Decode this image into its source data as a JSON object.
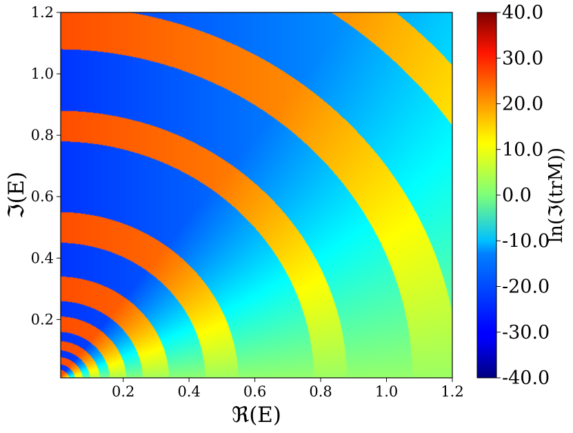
{
  "chart_data": {
    "type": "heatmap",
    "title": "",
    "xlabel": "ℜ(E)",
    "ylabel": "ℑ(E)",
    "xlim": [
      0.01,
      1.2
    ],
    "ylim": [
      0.01,
      1.2
    ],
    "x_ticks": [
      0.2,
      0.4,
      0.6,
      0.8,
      1.0,
      1.2
    ],
    "x_tick_labels": [
      "0.2",
      "0.4",
      "0.6",
      "0.8",
      "1.0",
      "1.2"
    ],
    "y_ticks": [
      0.2,
      0.4,
      0.6,
      0.8,
      1.0,
      1.2
    ],
    "y_tick_labels": [
      "0.2",
      "0.4",
      "0.6",
      "0.8",
      "1.0",
      "1.2"
    ],
    "colorbar": {
      "label": "ln(ℑ(trM))",
      "range": [
        -40.0,
        40.0
      ],
      "ticks": [
        40,
        30,
        20,
        10,
        0,
        -10,
        -20,
        -30,
        -40
      ],
      "tick_labels": [
        "40.0",
        "30.0",
        "20.0",
        "10.0",
        "0.0",
        "-10.0",
        "-20.0",
        "-30.0",
        "-40.0"
      ],
      "colormap": "jet"
    },
    "grid": false,
    "pattern": {
      "description_free": true,
      "band_boundaries_radius": [
        0.038,
        0.055,
        0.078,
        0.1,
        0.13,
        0.16,
        0.21,
        0.26,
        0.34,
        0.45,
        0.55,
        0.78,
        0.88,
        1.08,
        1.22,
        1.46,
        1.58
      ],
      "hi_band_values": [
        20,
        22,
        24,
        26,
        28
      ],
      "lo_band_values": [
        -18,
        -22,
        -26,
        -28
      ]
    }
  }
}
